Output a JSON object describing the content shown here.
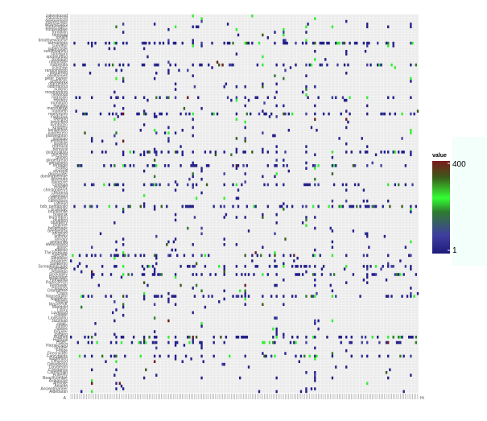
{
  "chart_data": {
    "type": "heatmap",
    "title": "",
    "xlabel": "",
    "ylabel": "",
    "legend": {
      "title": "value",
      "min_label": "1",
      "max_label": "400",
      "min": 1,
      "max": 400,
      "placement": "right",
      "colors": [
        "#1f1b7a",
        "#3f3fa0",
        "#2f7a2f",
        "#33ff33",
        "#3a5c1a",
        "#7a1a1a"
      ]
    },
    "grid": true,
    "x_tick_first": "A",
    "x_tick_last": "Hi",
    "y_labels": [
      "zakwokasiaf",
      "zakwokasiaf",
      "wenwenseel",
      "wellywesdes",
      "trutayeaglee",
      "trutayeaglee",
      "turnipidn",
      "tomsaiat",
      "tohallfl",
      "timothyewanese",
      "tairnaelgas",
      "sumohor",
      "supercoole",
      "sundowanmu",
      "stoolsjuni",
      "spuriourdug",
      "shotokan",
      "ruibaosine",
      "rocknrolla",
      "rickshaw",
      "randomdoob",
      "poguereig",
      "pixiepinnes",
      "peter_parker",
      "pedralves",
      "orangeade",
      "oddmanout",
      "nurkmo",
      "mostrandom",
      "newsoutl",
      "nagasaki",
      "mystery",
      "mundurto",
      "mayday",
      "marshaltaxi",
      "maribeth",
      "martyroom",
      "magicbus",
      "lovegod",
      "lonelybird",
      "kvmtucho",
      "kingofny",
      "kenkochen",
      "juanferrero",
      "joanleighton",
      "jessicao",
      "jedinights",
      "jaysonh",
      "hrafnkell",
      "henryviii",
      "gusbrooklyn",
      "guesthall",
      "grutwo",
      "gingerbread",
      "gerashimo",
      "ferdagel",
      "exakta",
      "elvespill",
      "dropscarer",
      "dominiquelouie",
      "doormats",
      "dianeoxe",
      "cynthiaa",
      "crowley",
      "christophervs",
      "chickena",
      "cavemant",
      "catfishjohn",
      "calmchaos",
      "caffiend",
      "bsb_pentapollo",
      "bronxtale",
      "brooklynite",
      "boxeruk",
      "blueribbon",
      "bluebird",
      "blueberry",
      "bigtimer",
      "bellaimage",
      "beeblebrox",
      "arkangel",
      "anthrax",
      "annayy",
      "ammonite",
      "alwaysloved",
      "alpine",
      "alfreldo",
      "TheTexBlues",
      "SpecialK",
      "Steelblue",
      "Skylarker",
      "SanRemo",
      "ScreamingEagle",
      "Roundeye",
      "Rosietoo",
      "Rockabilly",
      "Ringostarr",
      "Petrushka",
      "PerfectPitch",
      "Peshawar",
      "Panacea",
      "Orangetree",
      "Oasis",
      "Nonsequitor",
      "Nightflyer",
      "Mauna",
      "MaureenK",
      "Marigold",
      "Lucky",
      "Loveloud",
      "Lobster",
      "Lindsaylou",
      "Jazzman",
      "JuliaC",
      "Jumbo",
      "Jubilee",
      "Inquirer",
      "Iceberg",
      "Hughes",
      "Highball",
      "HSBC",
      "Harpsichord",
      "Gopher",
      "Fringe",
      "Firecracker",
      "Fancypants",
      "Engelhorn",
      "Elmwood",
      "Dreadlocks",
      "Daydream",
      "Constance",
      "Carmichael",
      "Butterfly",
      "Beachcomber",
      "Avalanche",
      "Aristotle",
      "Anselm",
      "Ancientmariner",
      "Aldebaran"
    ]
  }
}
